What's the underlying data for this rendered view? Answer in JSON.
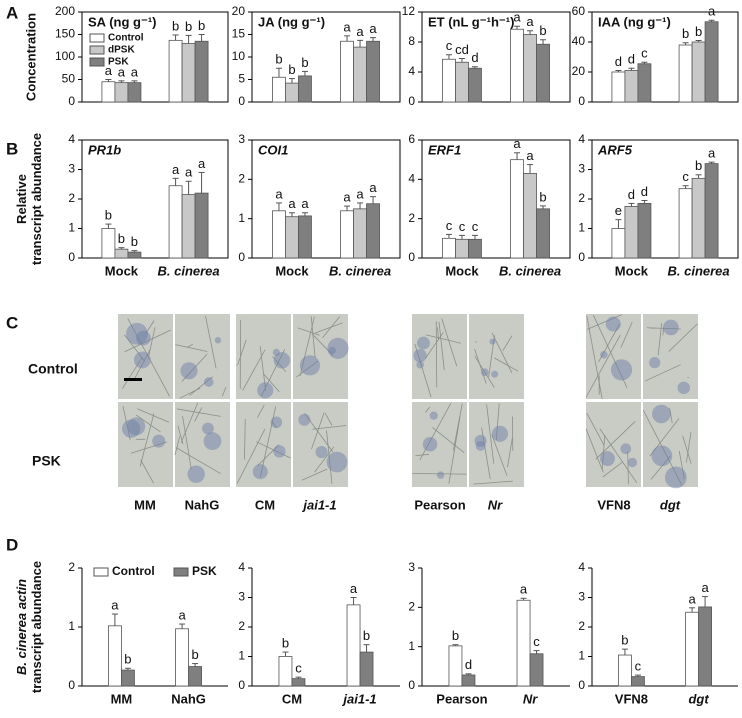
{
  "panels": [
    "A",
    "B",
    "C",
    "D"
  ],
  "photo_panel": {
    "row_labels": [
      "Control",
      "PSK"
    ],
    "column_labels": [
      "MM",
      "NahG",
      "CM",
      "jai1-1",
      "Pearson",
      "Nr",
      "VFN8",
      "dgt"
    ]
  },
  "chart_data": [
    {
      "type": "bar",
      "title": "SA (ng g⁻¹)",
      "ylabel": "Concentration",
      "categories": [
        null,
        null
      ],
      "frame": true,
      "legend": "upper left",
      "ylim": [
        0,
        200
      ],
      "yticks": [
        0,
        50,
        100,
        150,
        200
      ],
      "series": [
        {
          "name": "Control",
          "color": "#ffffff",
          "values": [
            45,
            137
          ],
          "errors": [
            5,
            12
          ],
          "labels": [
            "a",
            "b"
          ]
        },
        {
          "name": "dPSK",
          "color": "#c8c8c8",
          "values": [
            43,
            130
          ],
          "errors": [
            4,
            18
          ],
          "labels": [
            "a",
            "b"
          ]
        },
        {
          "name": "PSK",
          "color": "#7f7f7f",
          "values": [
            43,
            135
          ],
          "errors": [
            4,
            15
          ],
          "labels": [
            "a",
            "b"
          ]
        }
      ]
    },
    {
      "type": "bar",
      "title": "JA (ng g⁻¹)",
      "categories": [
        null,
        null
      ],
      "frame": true,
      "ylim": [
        0,
        20
      ],
      "yticks": [
        0,
        5,
        10,
        15,
        20
      ],
      "series": [
        {
          "color": "#ffffff",
          "values": [
            5.5,
            13.5
          ],
          "errors": [
            2,
            1.2
          ],
          "labels": [
            "b",
            "a"
          ]
        },
        {
          "color": "#c8c8c8",
          "values": [
            4.2,
            12.2
          ],
          "errors": [
            1,
            1.5
          ],
          "labels": [
            "b",
            "a"
          ]
        },
        {
          "color": "#7f7f7f",
          "values": [
            5.8,
            13.5
          ],
          "errors": [
            1,
            0.8
          ],
          "labels": [
            "b",
            "a"
          ]
        }
      ]
    },
    {
      "type": "bar",
      "title": "ET (nL g⁻¹h⁻¹)",
      "categories": [
        null,
        null
      ],
      "frame": true,
      "ylim": [
        0,
        12
      ],
      "yticks": [
        0,
        4,
        8,
        12
      ],
      "series": [
        {
          "color": "#ffffff",
          "values": [
            5.7,
            9.7
          ],
          "errors": [
            0.6,
            0.4
          ],
          "labels": [
            "c",
            "a"
          ]
        },
        {
          "color": "#c8c8c8",
          "values": [
            5.3,
            9.0
          ],
          "errors": [
            0.5,
            0.5
          ],
          "labels": [
            "cd",
            "a"
          ]
        },
        {
          "color": "#7f7f7f",
          "values": [
            4.5,
            7.7
          ],
          "errors": [
            0.2,
            0.6
          ],
          "labels": [
            "d",
            "b"
          ]
        }
      ]
    },
    {
      "type": "bar",
      "title": "IAA (ng g⁻¹)",
      "categories": [
        null,
        null
      ],
      "frame": true,
      "ylim": [
        0,
        60
      ],
      "yticks": [
        0,
        20,
        40,
        60
      ],
      "series": [
        {
          "color": "#ffffff",
          "values": [
            20,
            38
          ],
          "errors": [
            1,
            1.5
          ],
          "labels": [
            "d",
            "b"
          ]
        },
        {
          "color": "#c8c8c8",
          "values": [
            21,
            40
          ],
          "errors": [
            1.5,
            1
          ],
          "labels": [
            "d",
            "b"
          ]
        },
        {
          "color": "#7f7f7f",
          "values": [
            25.5,
            53.5
          ],
          "errors": [
            1,
            1
          ],
          "labels": [
            "c",
            "a"
          ]
        }
      ]
    },
    {
      "type": "bar",
      "title": "PR1b",
      "ylabel": [
        "Relative",
        "transcript abundance"
      ],
      "categories": [
        "Mock",
        "B. cinerea"
      ],
      "frame": true,
      "ylim": [
        0,
        4
      ],
      "yticks": [
        0,
        1,
        2,
        3,
        4
      ],
      "series": [
        {
          "color": "#ffffff",
          "values": [
            1.0,
            2.45
          ],
          "errors": [
            0.15,
            0.25
          ],
          "labels": [
            "b",
            "a"
          ]
        },
        {
          "color": "#c8c8c8",
          "values": [
            0.3,
            2.15
          ],
          "errors": [
            0.05,
            0.45
          ],
          "labels": [
            "b",
            "a"
          ]
        },
        {
          "color": "#7f7f7f",
          "values": [
            0.2,
            2.2
          ],
          "errors": [
            0.05,
            0.7
          ],
          "labels": [
            "b",
            "a"
          ]
        }
      ]
    },
    {
      "type": "bar",
      "title": "COI1",
      "categories": [
        "Mock",
        "B. cinerea"
      ],
      "frame": true,
      "ylim": [
        0,
        3
      ],
      "yticks": [
        0,
        1,
        2,
        3
      ],
      "series": [
        {
          "color": "#ffffff",
          "values": [
            1.2,
            1.2
          ],
          "errors": [
            0.2,
            0.12
          ],
          "labels": [
            "a",
            "a"
          ]
        },
        {
          "color": "#c8c8c8",
          "values": [
            1.05,
            1.25
          ],
          "errors": [
            0.1,
            0.15
          ],
          "labels": [
            "a",
            "a"
          ]
        },
        {
          "color": "#7f7f7f",
          "values": [
            1.07,
            1.38
          ],
          "errors": [
            0.08,
            0.18
          ],
          "labels": [
            "a",
            "a"
          ]
        }
      ]
    },
    {
      "type": "bar",
      "title": "ERF1",
      "categories": [
        "Mock",
        "B. cinerea"
      ],
      "frame": true,
      "ylim": [
        0,
        6
      ],
      "yticks": [
        0,
        2,
        4,
        6
      ],
      "series": [
        {
          "color": "#ffffff",
          "values": [
            1.0,
            5.0
          ],
          "errors": [
            0.2,
            0.35
          ],
          "labels": [
            "c",
            "a"
          ]
        },
        {
          "color": "#c8c8c8",
          "values": [
            0.95,
            4.3
          ],
          "errors": [
            0.2,
            0.45
          ],
          "labels": [
            "c",
            "a"
          ]
        },
        {
          "color": "#7f7f7f",
          "values": [
            0.95,
            2.5
          ],
          "errors": [
            0.2,
            0.15
          ],
          "labels": [
            "c",
            "b"
          ]
        }
      ]
    },
    {
      "type": "bar",
      "title": "ARF5",
      "categories": [
        "Mock",
        "B. cinerea"
      ],
      "frame": true,
      "ylim": [
        0,
        4
      ],
      "yticks": [
        0,
        1,
        2,
        3,
        4
      ],
      "series": [
        {
          "color": "#ffffff",
          "values": [
            1.0,
            2.35
          ],
          "errors": [
            0.3,
            0.1
          ],
          "labels": [
            "e",
            "c"
          ]
        },
        {
          "color": "#c8c8c8",
          "values": [
            1.75,
            2.7
          ],
          "errors": [
            0.1,
            0.12
          ],
          "labels": [
            "d",
            "b"
          ]
        },
        {
          "color": "#7f7f7f",
          "values": [
            1.85,
            3.2
          ],
          "errors": [
            0.1,
            0.05
          ],
          "labels": [
            "d",
            "a"
          ]
        }
      ]
    },
    {
      "type": "bar",
      "ylabel": [
        "B. cinerea actin",
        "transcript abundance"
      ],
      "categories": [
        "MM",
        "NahG"
      ],
      "frame": false,
      "legend": "upper left",
      "ylim": [
        0,
        2
      ],
      "yticks": [
        0,
        1,
        2
      ],
      "series": [
        {
          "name": "Control",
          "color": "#ffffff",
          "values": [
            1.02,
            0.97
          ],
          "errors": [
            0.2,
            0.08
          ],
          "labels": [
            "a",
            "a"
          ]
        },
        {
          "name": "PSK",
          "color": "#7f7f7f",
          "values": [
            0.27,
            0.33
          ],
          "errors": [
            0.03,
            0.05
          ],
          "labels": [
            "b",
            "b"
          ]
        }
      ]
    },
    {
      "type": "bar",
      "categories": [
        "CM",
        "jai1-1"
      ],
      "frame": false,
      "ylim": [
        0,
        4
      ],
      "yticks": [
        0,
        1,
        2,
        3,
        4
      ],
      "series": [
        {
          "color": "#ffffff",
          "values": [
            1.0,
            2.75
          ],
          "errors": [
            0.15,
            0.25
          ],
          "labels": [
            "b",
            "a"
          ]
        },
        {
          "color": "#7f7f7f",
          "values": [
            0.25,
            1.15
          ],
          "errors": [
            0.05,
            0.25
          ],
          "labels": [
            "c",
            "b"
          ]
        }
      ]
    },
    {
      "type": "bar",
      "categories": [
        "Pearson",
        "Nr"
      ],
      "frame": false,
      "ylim": [
        0,
        3
      ],
      "yticks": [
        0,
        1,
        2,
        3
      ],
      "series": [
        {
          "color": "#ffffff",
          "values": [
            1.02,
            2.18
          ],
          "errors": [
            0.03,
            0.05
          ],
          "labels": [
            "b",
            "a"
          ]
        },
        {
          "color": "#7f7f7f",
          "values": [
            0.28,
            0.82
          ],
          "errors": [
            0.03,
            0.08
          ],
          "labels": [
            "d",
            "c"
          ]
        }
      ]
    },
    {
      "type": "bar",
      "categories": [
        "VFN8",
        "dgt"
      ],
      "frame": false,
      "ylim": [
        0,
        4
      ],
      "yticks": [
        0,
        1,
        2,
        3,
        4
      ],
      "series": [
        {
          "color": "#ffffff",
          "values": [
            1.05,
            2.5
          ],
          "errors": [
            0.2,
            0.15
          ],
          "labels": [
            "b",
            "a"
          ]
        },
        {
          "color": "#7f7f7f",
          "values": [
            0.32,
            2.68
          ],
          "errors": [
            0.05,
            0.35
          ],
          "labels": [
            "c",
            "a"
          ]
        }
      ]
    }
  ]
}
